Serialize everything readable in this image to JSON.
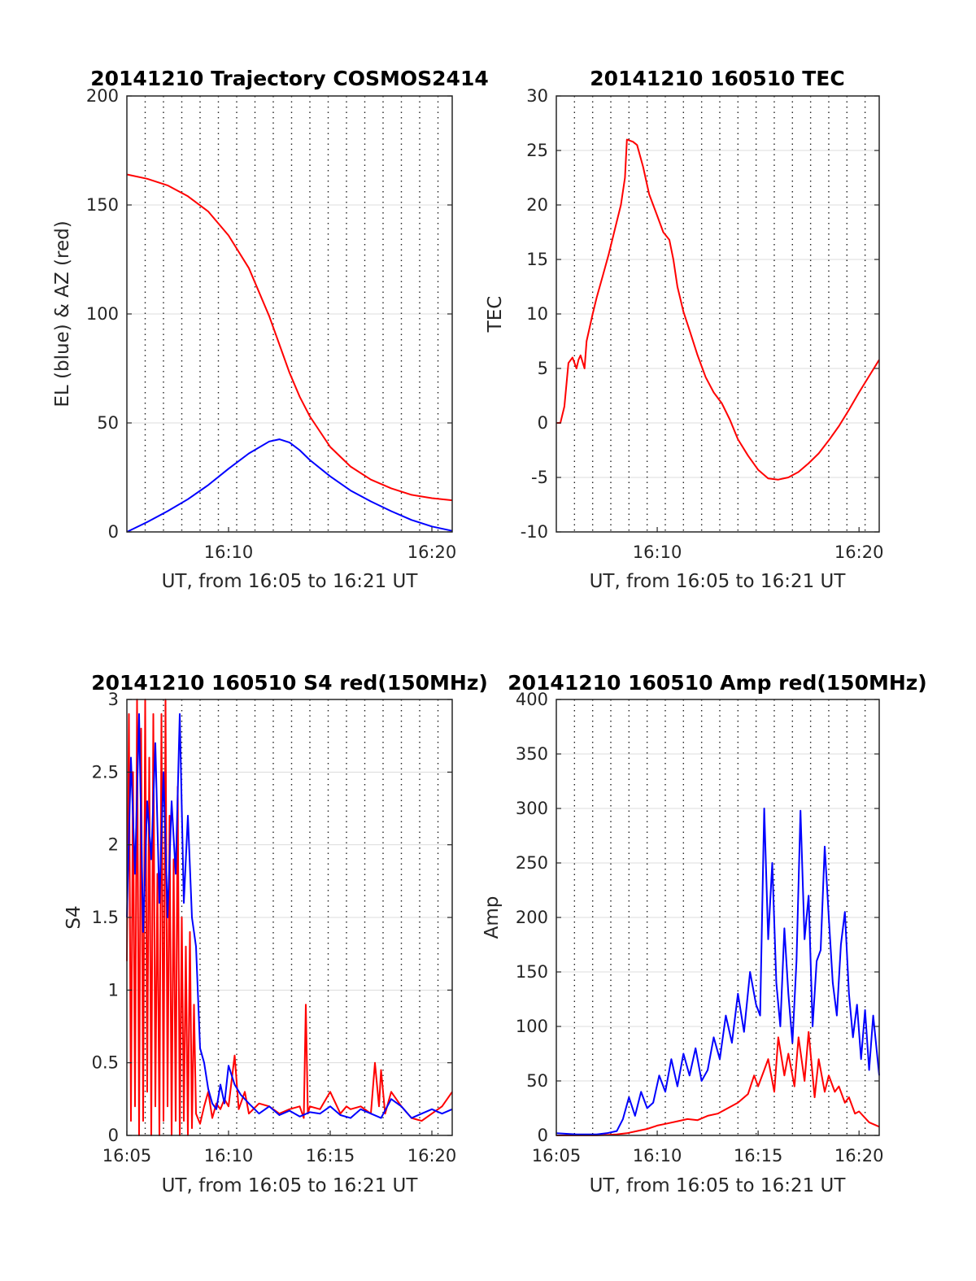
{
  "chart_data": [
    {
      "type": "line",
      "title": "20141210 Trajectory COSMOS2414",
      "xlabel": "UT, from 16:05 to 16:21 UT",
      "ylabel": "EL (blue) & AZ (red)",
      "xlim": [
        5.0,
        21.0
      ],
      "ylim": [
        0,
        200
      ],
      "yticks": [
        0,
        50,
        100,
        150,
        200
      ],
      "xticks": [
        10,
        20
      ],
      "xtick_labels": [
        "16:10",
        "16:20"
      ],
      "grid": "dotted vertical every 0.9 min, light horizontal",
      "series": [
        {
          "color": "#ff0000",
          "x": [
            5.0,
            6.0,
            7.0,
            8.0,
            9.0,
            10.0,
            11.0,
            12.0,
            12.5,
            13.0,
            13.5,
            14.0,
            15.0,
            16.0,
            17.0,
            18.0,
            19.0,
            20.0,
            21.0
          ],
          "values": [
            164,
            162,
            159,
            154,
            147,
            136,
            121,
            99,
            86,
            73,
            62,
            53,
            39,
            30,
            24,
            20,
            17,
            15.5,
            14.5
          ]
        },
        {
          "color": "#0000ff",
          "x": [
            5.0,
            6.0,
            7.0,
            8.0,
            9.0,
            10.0,
            11.0,
            12.0,
            12.5,
            13.0,
            13.5,
            14.0,
            15.0,
            16.0,
            17.0,
            18.0,
            19.0,
            20.0,
            21.0
          ],
          "values": [
            0,
            4.5,
            9.5,
            15,
            21.5,
            29,
            36,
            41.5,
            42.5,
            41,
            37.5,
            33,
            25.5,
            19,
            14,
            9.5,
            5.5,
            2.5,
            0.5
          ]
        }
      ]
    },
    {
      "type": "line",
      "title": "20141210 160510 TEC",
      "xlabel": "UT, from 16:05 to 16:21 UT",
      "ylabel": "TEC",
      "xlim": [
        5.0,
        21.0
      ],
      "ylim": [
        -10,
        30
      ],
      "yticks": [
        -10,
        -5,
        0,
        5,
        10,
        15,
        20,
        25,
        30
      ],
      "xticks": [
        10,
        20
      ],
      "xtick_labels": [
        "16:10",
        "16:20"
      ],
      "grid": "dotted vertical every 0.9 min, light horizontal",
      "series": [
        {
          "color": "#ff0000",
          "x": [
            5.0,
            5.2,
            5.4,
            5.5,
            5.6,
            5.8,
            6.0,
            6.1,
            6.2,
            6.4,
            6.5,
            6.8,
            7.0,
            7.3,
            7.6,
            8.0,
            8.2,
            8.4,
            8.5,
            8.8,
            9.0,
            9.3,
            9.6,
            10.0,
            10.3,
            10.6,
            10.8,
            11.0,
            11.3,
            11.6,
            12.0,
            12.4,
            12.8,
            13.2,
            13.6,
            14.0,
            14.5,
            15.0,
            15.5,
            16.0,
            16.5,
            17.0,
            17.5,
            18.0,
            18.5,
            19.0,
            19.5,
            20.0,
            20.5,
            21.0
          ],
          "values": [
            0,
            0,
            1.5,
            3.5,
            5.5,
            6,
            5,
            5.8,
            6.2,
            5,
            7.5,
            10,
            11.5,
            13.5,
            15.5,
            18.5,
            20,
            22.5,
            26,
            25.8,
            25.5,
            23.5,
            21,
            19,
            17.5,
            16.8,
            15,
            12.5,
            10.2,
            8.5,
            6.2,
            4.2,
            2.8,
            1.8,
            0.3,
            -1.5,
            -3,
            -4.3,
            -5.1,
            -5.2,
            -5.0,
            -4.5,
            -3.7,
            -2.8,
            -1.6,
            -0.3,
            1.2,
            2.8,
            4.3,
            5.8
          ]
        }
      ]
    },
    {
      "type": "line",
      "title": "20141210 160510 S4 red(150MHz)",
      "xlabel": "UT, from 16:05 to 16:21 UT",
      "ylabel": "S4",
      "xlim": [
        5.0,
        21.0
      ],
      "ylim": [
        0,
        3
      ],
      "yticks": [
        0,
        0.5,
        1,
        1.5,
        2,
        2.5,
        3
      ],
      "ytick_labels": [
        "0",
        "0.5",
        "1",
        "1.5",
        "2",
        "2.5",
        "3"
      ],
      "xticks": [
        5,
        10,
        15,
        20
      ],
      "xtick_labels": [
        "16:05",
        "16:10",
        "16:15",
        "16:20"
      ],
      "grid": "dotted vertical every 0.9 min, light horizontal",
      "series": [
        {
          "color": "#ff0000",
          "x": [
            5.0,
            5.1,
            5.2,
            5.3,
            5.4,
            5.5,
            5.6,
            5.7,
            5.8,
            5.9,
            6.0,
            6.1,
            6.2,
            6.3,
            6.4,
            6.5,
            6.6,
            6.7,
            6.8,
            6.9,
            7.0,
            7.1,
            7.2,
            7.3,
            7.4,
            7.5,
            7.6,
            7.7,
            7.8,
            7.9,
            8.0,
            8.1,
            8.2,
            8.3,
            8.4,
            8.6,
            8.8,
            9.0,
            9.2,
            9.4,
            9.6,
            9.8,
            10.0,
            10.3,
            10.5,
            10.8,
            11.0,
            11.5,
            12.0,
            12.5,
            13.0,
            13.5,
            13.7,
            13.8,
            13.9,
            14.0,
            14.5,
            15.0,
            15.5,
            15.8,
            16.0,
            16.5,
            17.0,
            17.2,
            17.4,
            17.5,
            17.7,
            18.0,
            18.5,
            19.0,
            19.5,
            20.0,
            20.5,
            21.0
          ],
          "values": [
            1.2,
            2.9,
            0.1,
            2.5,
            0.2,
            3.0,
            0.0,
            2.8,
            0.1,
            3.0,
            0.3,
            2.6,
            0.0,
            2.9,
            0.2,
            1.8,
            0.0,
            2.9,
            0.1,
            3.0,
            0.2,
            2.2,
            0.0,
            1.9,
            0.1,
            2.4,
            0.0,
            1.5,
            0.1,
            1.3,
            0.0,
            1.4,
            0.05,
            0.9,
            0.15,
            0.08,
            0.2,
            0.3,
            0.12,
            0.22,
            0.18,
            0.25,
            0.2,
            0.55,
            0.18,
            0.3,
            0.15,
            0.22,
            0.2,
            0.15,
            0.18,
            0.2,
            0.12,
            0.9,
            0.15,
            0.2,
            0.18,
            0.3,
            0.15,
            0.2,
            0.18,
            0.2,
            0.15,
            0.5,
            0.2,
            0.45,
            0.15,
            0.3,
            0.2,
            0.12,
            0.1,
            0.15,
            0.2,
            0.3
          ]
        },
        {
          "color": "#0000ff",
          "x": [
            5.0,
            5.2,
            5.4,
            5.6,
            5.8,
            6.0,
            6.2,
            6.4,
            6.6,
            6.8,
            7.0,
            7.2,
            7.4,
            7.6,
            7.8,
            8.0,
            8.2,
            8.4,
            8.6,
            8.8,
            9.0,
            9.2,
            9.4,
            9.6,
            9.8,
            10.0,
            10.3,
            10.6,
            11.0,
            11.5,
            12.0,
            12.5,
            13.0,
            13.5,
            14.0,
            14.5,
            15.0,
            15.5,
            16.0,
            16.5,
            17.0,
            17.5,
            18.0,
            18.5,
            19.0,
            19.5,
            20.0,
            20.5,
            21.0
          ],
          "values": [
            1.5,
            2.6,
            1.8,
            2.9,
            1.4,
            2.3,
            1.9,
            2.7,
            1.6,
            2.5,
            1.5,
            2.3,
            1.8,
            2.9,
            1.6,
            2.2,
            1.5,
            1.3,
            0.6,
            0.5,
            0.32,
            0.22,
            0.18,
            0.35,
            0.22,
            0.48,
            0.35,
            0.28,
            0.22,
            0.15,
            0.2,
            0.14,
            0.17,
            0.13,
            0.16,
            0.15,
            0.2,
            0.14,
            0.12,
            0.18,
            0.15,
            0.12,
            0.25,
            0.2,
            0.12,
            0.15,
            0.18,
            0.15,
            0.18
          ]
        }
      ]
    },
    {
      "type": "line",
      "title": "20141210 160510 Amp red(150MHz)",
      "xlabel": "UT, from 16:05 to 16:21 UT",
      "ylabel": "Amp",
      "xlim": [
        5.0,
        21.0
      ],
      "ylim": [
        0,
        400
      ],
      "yticks": [
        0,
        50,
        100,
        150,
        200,
        250,
        300,
        350,
        400
      ],
      "xticks": [
        5,
        10,
        15,
        20
      ],
      "xtick_labels": [
        "16:05",
        "16:10",
        "16:15",
        "16:20"
      ],
      "grid": "dotted vertical every 0.9 min, light horizontal",
      "series": [
        {
          "color": "#ff0000",
          "x": [
            5.0,
            6.0,
            7.0,
            8.0,
            8.5,
            9.0,
            9.5,
            10.0,
            10.5,
            11.0,
            11.5,
            12.0,
            12.5,
            13.0,
            13.5,
            14.0,
            14.5,
            14.8,
            15.0,
            15.3,
            15.5,
            15.8,
            16.0,
            16.3,
            16.5,
            16.8,
            17.0,
            17.3,
            17.5,
            17.8,
            18.0,
            18.3,
            18.5,
            18.8,
            19.0,
            19.3,
            19.5,
            19.8,
            20.0,
            20.5,
            21.0
          ],
          "values": [
            0,
            0,
            0,
            1,
            2,
            4,
            6,
            9,
            11,
            13,
            15,
            14,
            18,
            20,
            25,
            30,
            38,
            55,
            45,
            60,
            70,
            40,
            90,
            55,
            75,
            45,
            90,
            50,
            95,
            35,
            70,
            40,
            55,
            40,
            45,
            30,
            35,
            20,
            22,
            12,
            8
          ]
        },
        {
          "color": "#0000ff",
          "x": [
            5.0,
            6.0,
            7.0,
            7.5,
            8.0,
            8.3,
            8.6,
            8.9,
            9.2,
            9.5,
            9.8,
            10.1,
            10.4,
            10.7,
            11.0,
            11.3,
            11.6,
            11.9,
            12.2,
            12.5,
            12.8,
            13.1,
            13.4,
            13.7,
            14.0,
            14.3,
            14.6,
            14.9,
            15.1,
            15.3,
            15.5,
            15.7,
            15.9,
            16.1,
            16.3,
            16.5,
            16.7,
            16.9,
            17.1,
            17.3,
            17.5,
            17.7,
            17.9,
            18.1,
            18.3,
            18.5,
            18.7,
            18.9,
            19.1,
            19.3,
            19.5,
            19.7,
            19.9,
            20.1,
            20.3,
            20.5,
            20.7,
            21.0
          ],
          "values": [
            2,
            1,
            1,
            2,
            4,
            15,
            35,
            18,
            40,
            25,
            30,
            55,
            40,
            70,
            45,
            75,
            55,
            80,
            50,
            60,
            90,
            70,
            110,
            85,
            130,
            95,
            150,
            120,
            110,
            300,
            180,
            250,
            140,
            100,
            190,
            130,
            85,
            160,
            298,
            180,
            220,
            100,
            160,
            170,
            265,
            200,
            140,
            110,
            175,
            205,
            130,
            90,
            120,
            70,
            115,
            60,
            110,
            55
          ]
        }
      ]
    }
  ]
}
